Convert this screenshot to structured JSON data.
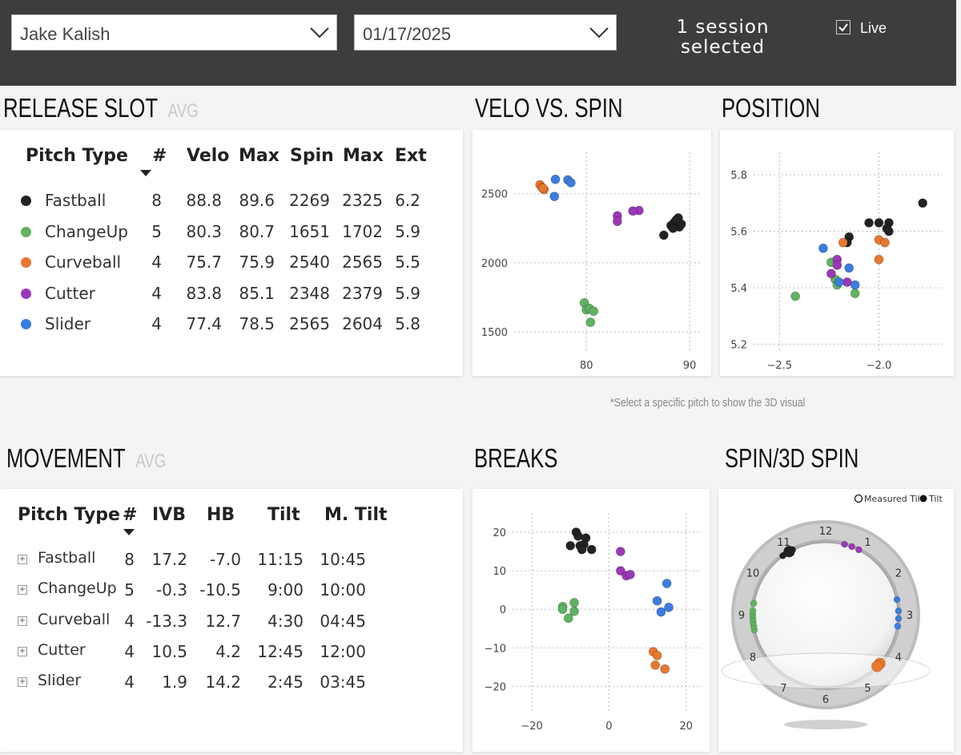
{
  "header": {
    "pitcher": "Jake Kalish",
    "date": "01/17/2025",
    "session_line1": "1 session",
    "session_line2": "selected",
    "live_label": "Live",
    "live_checked": true
  },
  "release_slot": {
    "title": "RELEASE SLOT",
    "avg": "AVG",
    "columns": [
      "Pitch Type",
      "#",
      "Velo",
      "Max",
      "Spin",
      "Max",
      "Ext"
    ],
    "rows": [
      {
        "name": "Fastball",
        "color": "#222222",
        "count": "8",
        "velo": "88.8",
        "max_velo": "89.6",
        "spin": "2269",
        "max_spin": "2325",
        "ext": "6.2"
      },
      {
        "name": "ChangeUp",
        "color": "#5fb35f",
        "count": "5",
        "velo": "80.3",
        "max_velo": "80.7",
        "spin": "1651",
        "max_spin": "1702",
        "ext": "5.9"
      },
      {
        "name": "Curveball",
        "color": "#e8782e",
        "count": "4",
        "velo": "75.7",
        "max_velo": "75.9",
        "spin": "2540",
        "max_spin": "2565",
        "ext": "5.5"
      },
      {
        "name": "Cutter",
        "color": "#9b38b8",
        "count": "4",
        "velo": "83.8",
        "max_velo": "85.1",
        "spin": "2348",
        "max_spin": "2379",
        "ext": "5.9"
      },
      {
        "name": "Slider",
        "color": "#3a7de0",
        "count": "4",
        "velo": "77.4",
        "max_velo": "78.5",
        "spin": "2565",
        "max_spin": "2604",
        "ext": "5.8"
      }
    ]
  },
  "movement": {
    "title": "MOVEMENT",
    "avg": "AVG",
    "columns": [
      "Pitch Type",
      "#",
      "IVB",
      "HB",
      "Tilt",
      "M. Tilt"
    ],
    "rows": [
      {
        "name": "Fastball",
        "count": "8",
        "ivb": "17.2",
        "hb": "-7.0",
        "tilt": "11:15",
        "m_tilt": "10:45"
      },
      {
        "name": "ChangeUp",
        "count": "5",
        "ivb": "-0.3",
        "hb": "-10.5",
        "tilt": "9:00",
        "m_tilt": "10:00"
      },
      {
        "name": "Curveball",
        "count": "4",
        "ivb": "-13.3",
        "hb": "12.7",
        "tilt": "4:30",
        "m_tilt": "04:45"
      },
      {
        "name": "Cutter",
        "count": "4",
        "ivb": "10.5",
        "hb": "4.2",
        "tilt": "12:45",
        "m_tilt": "12:00"
      },
      {
        "name": "Slider",
        "count": "4",
        "ivb": "1.9",
        "hb": "14.2",
        "tilt": "2:45",
        "m_tilt": "03:45"
      }
    ]
  },
  "note": "*Select a specific pitch to show the 3D visual",
  "colors": {
    "Fastball": "#222222",
    "ChangeUp": "#5fb35f",
    "Curveball": "#e8782e",
    "Cutter": "#9b38b8",
    "Slider": "#3a7de0"
  },
  "chart_data": [
    {
      "id": "velo_spin",
      "type": "scatter",
      "title": "VELO VS. SPIN",
      "xlim": [
        73,
        91
      ],
      "ylim": [
        1350,
        2800
      ],
      "xticks": [
        80,
        90
      ],
      "yticks": [
        1500,
        2000,
        2500
      ],
      "series": [
        {
          "name": "Fastball",
          "points": [
            [
              87.5,
              2200
            ],
            [
              88.2,
              2270
            ],
            [
              88.5,
              2290
            ],
            [
              88.7,
              2310
            ],
            [
              89.0,
              2260
            ],
            [
              89.2,
              2280
            ],
            [
              88.9,
              2325
            ],
            [
              88.4,
              2250
            ]
          ]
        },
        {
          "name": "ChangeUp",
          "points": [
            [
              79.8,
              1710
            ],
            [
              80.0,
              1660
            ],
            [
              80.3,
              1670
            ],
            [
              80.7,
              1650
            ],
            [
              80.4,
              1570
            ]
          ]
        },
        {
          "name": "Curveball",
          "points": [
            [
              75.5,
              2565
            ],
            [
              75.7,
              2545
            ],
            [
              75.9,
              2530
            ],
            [
              75.8,
              2540
            ]
          ]
        },
        {
          "name": "Cutter",
          "points": [
            [
              83.0,
              2340
            ],
            [
              83.0,
              2300
            ],
            [
              85.1,
              2379
            ],
            [
              84.5,
              2375
            ]
          ]
        },
        {
          "name": "Slider",
          "points": [
            [
              77.0,
              2604
            ],
            [
              78.2,
              2600
            ],
            [
              78.5,
              2580
            ],
            [
              76.9,
              2480
            ]
          ]
        }
      ]
    },
    {
      "id": "position",
      "type": "scatter",
      "title": "POSITION",
      "xlim": [
        -2.63,
        -1.68
      ],
      "ylim": [
        5.17,
        5.88
      ],
      "xticks": [
        -2.5,
        -2.0
      ],
      "yticks": [
        5.2,
        5.4,
        5.6,
        5.8
      ],
      "series": [
        {
          "name": "Fastball",
          "points": [
            [
              -2.15,
              5.58
            ],
            [
              -2.16,
              5.56
            ],
            [
              -2.05,
              5.63
            ],
            [
              -2.0,
              5.63
            ],
            [
              -1.95,
              5.63
            ],
            [
              -1.96,
              5.61
            ],
            [
              -1.95,
              5.6
            ],
            [
              -1.78,
              5.7
            ]
          ]
        },
        {
          "name": "ChangeUp",
          "points": [
            [
              -2.42,
              5.37
            ],
            [
              -2.24,
              5.49
            ],
            [
              -2.22,
              5.43
            ],
            [
              -2.21,
              5.41
            ],
            [
              -2.12,
              5.38
            ]
          ]
        },
        {
          "name": "Curveball",
          "points": [
            [
              -2.18,
              5.56
            ],
            [
              -2.0,
              5.57
            ],
            [
              -1.97,
              5.56
            ],
            [
              -2.0,
              5.5
            ]
          ]
        },
        {
          "name": "Cutter",
          "points": [
            [
              -2.21,
              5.5
            ],
            [
              -2.21,
              5.48
            ],
            [
              -2.24,
              5.45
            ],
            [
              -2.16,
              5.42
            ]
          ]
        },
        {
          "name": "Slider",
          "points": [
            [
              -2.28,
              5.54
            ],
            [
              -2.2,
              5.42
            ],
            [
              -2.15,
              5.47
            ],
            [
              -2.12,
              5.41
            ]
          ]
        }
      ]
    },
    {
      "id": "breaks",
      "type": "scatter",
      "title": "BREAKS",
      "xlim": [
        -25,
        24
      ],
      "ylim": [
        -27,
        25
      ],
      "xticks": [
        -20,
        0,
        20
      ],
      "yticks": [
        -20,
        -10,
        0,
        10,
        20
      ],
      "series": [
        {
          "name": "Fastball",
          "points": [
            [
              -8.5,
              20
            ],
            [
              -8,
              19
            ],
            [
              -6,
              18.5
            ],
            [
              -10,
              16.5
            ],
            [
              -7.5,
              16.5
            ],
            [
              -6.5,
              16.8
            ],
            [
              -4.5,
              15.5
            ],
            [
              -7,
              15.5
            ]
          ]
        },
        {
          "name": "ChangeUp",
          "points": [
            [
              -12,
              0.7
            ],
            [
              -9,
              1.7
            ],
            [
              -12,
              0
            ],
            [
              -9,
              -0.5
            ],
            [
              -10.5,
              -2.3
            ]
          ]
        },
        {
          "name": "Curveball",
          "points": [
            [
              11.5,
              -11
            ],
            [
              12.5,
              -12
            ],
            [
              12,
              -14.5
            ],
            [
              14.5,
              -15.5
            ]
          ]
        },
        {
          "name": "Cutter",
          "points": [
            [
              3,
              15
            ],
            [
              3,
              10
            ],
            [
              4.5,
              8.7
            ],
            [
              5.5,
              9
            ]
          ]
        },
        {
          "name": "Slider",
          "points": [
            [
              15,
              6.7
            ],
            [
              12.5,
              2.2
            ],
            [
              15.5,
              0.5
            ],
            [
              13.5,
              -0.7
            ]
          ]
        }
      ]
    },
    {
      "id": "spin_3d",
      "type": "scatter",
      "title": "SPIN/3D SPIN",
      "legend": [
        {
          "label": "Measured Tilt",
          "style": "open"
        },
        {
          "label": "Tilt",
          "style": "filled"
        }
      ],
      "clock_labels": [
        "12",
        "1",
        "2",
        "3",
        "4",
        "5",
        "6",
        "7",
        "8",
        "9",
        "10",
        "11"
      ],
      "series": [
        {
          "name": "Fastball",
          "clock_hours": [
            10.8,
            10.9,
            11.0,
            11.0,
            11.1
          ]
        },
        {
          "name": "ChangeUp",
          "clock_hours": [
            8.6,
            8.7,
            8.8,
            8.9,
            9.0,
            9.1,
            9.3
          ]
        },
        {
          "name": "Curveball",
          "clock_hours": [
            4.4,
            4.5
          ]
        },
        {
          "name": "Cutter",
          "clock_hours": [
            0.5,
            0.7,
            0.9
          ]
        },
        {
          "name": "Slider",
          "clock_hours": [
            2.6,
            2.9,
            3.1,
            3.3
          ]
        }
      ]
    }
  ]
}
